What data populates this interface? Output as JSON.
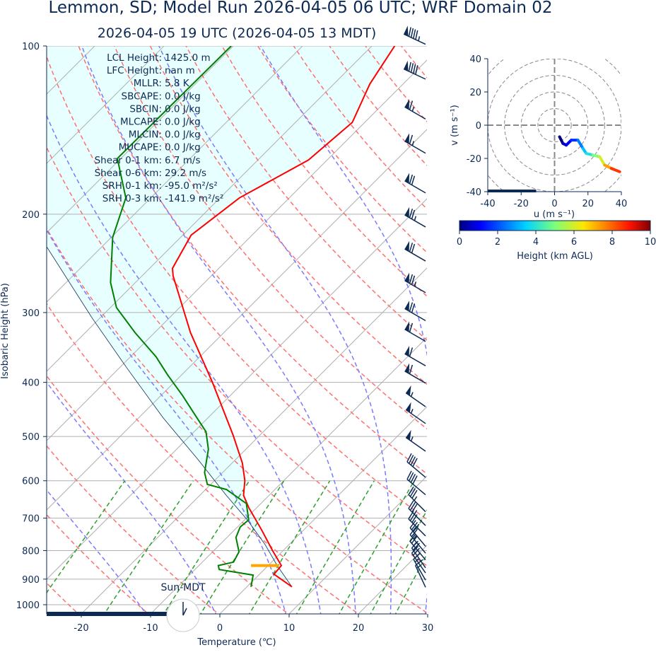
{
  "title": "Lemmon, SD; Model Run 2026-04-05 06 UTC; WRF Domain 02",
  "subtitle": "2026-04-05 19 UTC  (2026-04-05 13 MDT)",
  "stats": [
    {
      "label": "LCL Height:",
      "value": "1425.0 m"
    },
    {
      "label": "LFC Height:",
      "value": "nan m"
    },
    {
      "label": "MLLR:",
      "value": "5.8 K"
    },
    {
      "label": "SBCAPE:",
      "value": "0.0 J/kg"
    },
    {
      "label": "SBCIN:",
      "value": "0.0 J/kg"
    },
    {
      "label": "MLCAPE:",
      "value": "0.0 J/kg"
    },
    {
      "label": "MLCIN:",
      "value": "0.0 J/kg"
    },
    {
      "label": "MUCAPE:",
      "value": "0.0 J/kg"
    },
    {
      "label": "Shear 0-1 km:",
      "value": "6.7 m/s"
    },
    {
      "label": "Shear 0-6 km:",
      "value": "29.2 m/s"
    },
    {
      "label": "SRH 0-1 km:",
      "value": "-95.0 m²/s²"
    },
    {
      "label": "SRH 0-3 km:",
      "value": "-141.9 m²/s²"
    }
  ],
  "clock_label": "Sun-MDT",
  "colors": {
    "temperature": "#ff0000",
    "dewpoint": "#008000",
    "parcel": "#0d2a54",
    "lcl": "#ffa500",
    "cin_fill": "#e8ffff",
    "text": "#0d2a54"
  },
  "chart_data": [
    {
      "type": "line",
      "xlabel": "Temperature (℃)",
      "ylabel": "Isobaric Height (hPa)",
      "xlim": [
        -25.5,
        30
      ],
      "ylim": [
        1039,
        100
      ],
      "yscale": "log",
      "skew": true,
      "xticks": [
        -20,
        -10,
        0,
        10,
        20,
        30
      ],
      "yticks": [
        100,
        200,
        300,
        400,
        500,
        600,
        700,
        800,
        900,
        1000
      ],
      "grid": true,
      "series": [
        {
          "key": "temperature",
          "pressure": [
            929,
            882,
            851,
            799,
            736,
            671,
            637,
            600,
            558,
            497,
            399,
            326,
            258,
            250,
            218,
            187,
            160,
            137,
            117,
            100
          ],
          "values": [
            6.5,
            2.1,
            1.9,
            -1.6,
            -6.0,
            -11.1,
            -13.7,
            -15.6,
            -18.5,
            -23.9,
            -34.6,
            -44.8,
            -55.5,
            -56.7,
            -58.8,
            -57.2,
            -52.7,
            -51.8,
            -54.8,
            -56.7
          ]
        },
        {
          "key": "dewpoint",
          "pressure": [
            929,
            885,
            865,
            851,
            839,
            804,
            758,
            726,
            705,
            659,
            622,
            609,
            580,
            527,
            490,
            455,
            423,
            388,
            360,
            326,
            294,
            265,
            220,
            187,
            159,
            100
          ],
          "values": [
            0.6,
            -0.8,
            -6.5,
            -7.2,
            -5.5,
            -6.2,
            -8.7,
            -9.6,
            -9.4,
            -12.1,
            -17.0,
            -20.5,
            -22.6,
            -25.4,
            -28.3,
            -32.6,
            -36.8,
            -42.0,
            -46.3,
            -52.8,
            -59.1,
            -63.6,
            -69.8,
            -73.6,
            -80.5,
            -80.3
          ]
        },
        {
          "key": "parcel",
          "pressure": [
            929,
            851,
            780,
            705,
            637,
            550,
            462,
            377,
            307,
            229
          ],
          "values": [
            6.5,
            1.3,
            -3.5,
            -9.6,
            -16.2,
            -25.4,
            -36.6,
            -48.9,
            -61.1,
            -77.9
          ]
        }
      ],
      "lcl": {
        "pressure": 851,
        "temp_range": [
          4.5,
          8.5
        ]
      },
      "wind_barbs": {
        "units": "kt",
        "pressure": [
          97,
          112,
          132,
          152,
          179,
          206,
          237,
          270,
          303,
          330,
          365,
          392,
          432,
          463,
          519,
          578,
          621,
          666,
          705,
          736,
          768,
          790,
          812,
          839,
          857,
          883,
          909
        ],
        "speed": [
          95,
          90,
          65,
          65,
          70,
          75,
          70,
          75,
          70,
          60,
          60,
          60,
          55,
          55,
          55,
          40,
          40,
          35,
          35,
          30,
          30,
          25,
          25,
          20,
          20,
          15,
          15
        ],
        "direction": [
          295,
          295,
          300,
          300,
          300,
          300,
          300,
          300,
          300,
          300,
          300,
          300,
          305,
          305,
          305,
          310,
          310,
          315,
          315,
          315,
          320,
          320,
          320,
          325,
          325,
          330,
          335
        ]
      }
    },
    {
      "type": "line",
      "xlabel": "u (m s⁻¹)",
      "ylabel": "v (m s⁻¹)",
      "xlim": [
        -40,
        40
      ],
      "ylim": [
        -40,
        40
      ],
      "xticks": [
        -40,
        -20,
        0,
        20,
        40
      ],
      "yticks": [
        -40,
        -20,
        0,
        20,
        40
      ],
      "rings": [
        10,
        20,
        30,
        40,
        50
      ],
      "u": [
        3,
        5,
        7,
        10,
        14,
        17,
        19,
        23,
        27,
        30,
        34,
        39
      ],
      "v": [
        -7,
        -11,
        -12,
        -9,
        -9,
        -14,
        -17,
        -18,
        -19,
        -24,
        -26,
        -28
      ],
      "height_km": [
        0,
        0.5,
        1,
        1.6,
        2.5,
        3.3,
        3.9,
        5,
        6,
        7.3,
        8.5,
        10
      ],
      "colorbar": {
        "label": "Height (km AGL)",
        "range": [
          0,
          10
        ],
        "ticks": [
          0,
          2,
          4,
          6,
          8,
          10
        ],
        "colormap": "jet"
      }
    }
  ]
}
